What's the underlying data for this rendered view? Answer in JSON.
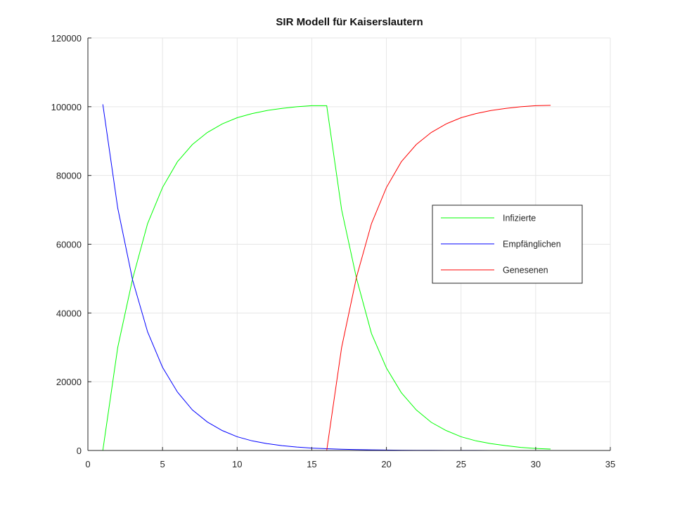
{
  "chart_data": {
    "type": "line",
    "title": "SIR Modell für Kaiserslautern",
    "xlabel": "",
    "ylabel": "",
    "xlim": [
      0,
      35
    ],
    "ylim": [
      0,
      120000
    ],
    "x_ticks": [
      0,
      5,
      10,
      15,
      20,
      25,
      30,
      35
    ],
    "y_ticks": [
      0,
      20000,
      40000,
      60000,
      80000,
      100000,
      120000
    ],
    "grid": true,
    "legend": {
      "position": "right",
      "entries": [
        "Infizierte",
        "Empfänglichen",
        "Genesenen"
      ]
    },
    "x": [
      1,
      2,
      3,
      4,
      5,
      6,
      7,
      8,
      9,
      10,
      11,
      12,
      13,
      14,
      15,
      16,
      17,
      18,
      19,
      20,
      21,
      22,
      23,
      24,
      25,
      26,
      27,
      28,
      29,
      30,
      31
    ],
    "series": [
      {
        "name": "Infizierte",
        "color": "#00ff00",
        "values": [
          0,
          30000,
          50000,
          66000,
          76500,
          84000,
          89000,
          92500,
          95000,
          96800,
          98000,
          98900,
          99500,
          100000,
          100300,
          100300,
          70000,
          50000,
          34000,
          24000,
          16800,
          11800,
          8200,
          5800,
          4000,
          2800,
          2000,
          1400,
          900,
          600,
          400
        ]
      },
      {
        "name": "Empfänglichen",
        "color": "#0000ff",
        "values": [
          100700,
          70500,
          49500,
          34500,
          24200,
          17000,
          11800,
          8300,
          5800,
          4000,
          2800,
          2000,
          1400,
          1000,
          700,
          500,
          350,
          250,
          180,
          120,
          80,
          60,
          40,
          30,
          20,
          15,
          10,
          8,
          5,
          3,
          2
        ]
      },
      {
        "name": "Genesenen",
        "color": "#ff0000",
        "values": [
          0,
          0,
          0,
          0,
          0,
          0,
          0,
          0,
          0,
          0,
          0,
          0,
          0,
          0,
          0,
          0,
          30000,
          50500,
          66000,
          76500,
          84000,
          89000,
          92500,
          95000,
          96800,
          98000,
          98900,
          99500,
          100000,
          100300,
          100400
        ]
      }
    ]
  }
}
